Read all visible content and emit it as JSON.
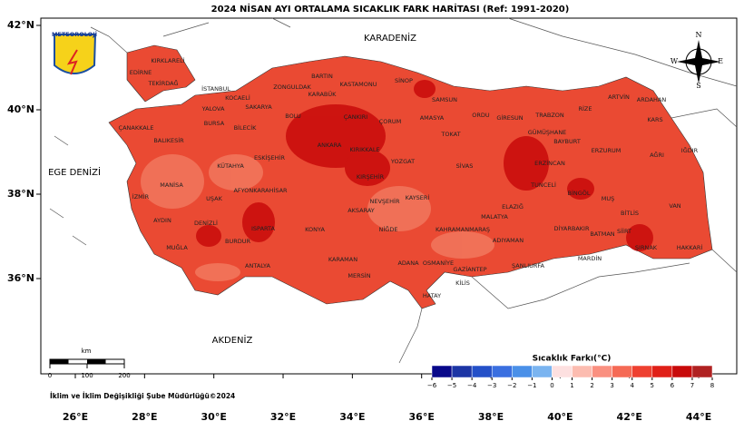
{
  "title": "2024 NİSAN AYI ORTALAMA SICAKLIK FARK HARİTASI (Ref: 1991-2020)",
  "logo": "METEOROLOJİ",
  "latitude_ticks": [
    {
      "value": 42,
      "label": "42°N"
    },
    {
      "value": 40,
      "label": "40°N"
    },
    {
      "value": 38,
      "label": "38°N"
    },
    {
      "value": 36,
      "label": "36°N"
    }
  ],
  "longitude_ticks": [
    {
      "value": 26,
      "label": "26°E"
    },
    {
      "value": 28,
      "label": "28°E"
    },
    {
      "value": 30,
      "label": "30°E"
    },
    {
      "value": 32,
      "label": "32°E"
    },
    {
      "value": 34,
      "label": "34°E"
    },
    {
      "value": 36,
      "label": "36°E"
    },
    {
      "value": 38,
      "label": "38°E"
    },
    {
      "value": 40,
      "label": "40°E"
    },
    {
      "value": 42,
      "label": "42°E"
    },
    {
      "value": 44,
      "label": "44°E"
    }
  ],
  "seas": [
    "KARADENİZ",
    "EGE DENİZİ",
    "AKDENİZ"
  ],
  "compass": {
    "north": "N",
    "east": "E",
    "south": "S",
    "west": "W"
  },
  "scale_bar": {
    "unit": "km",
    "ticks": [
      0,
      100,
      200
    ]
  },
  "legend": {
    "title": "Sıcaklık Farkı(°C)",
    "ticks": [
      {
        "value": -6,
        "label": "−6"
      },
      {
        "value": -5,
        "label": "−5"
      },
      {
        "value": -4,
        "label": "−4"
      },
      {
        "value": -3,
        "label": "−3"
      },
      {
        "value": -2,
        "label": "−2"
      },
      {
        "value": -1,
        "label": "−1"
      },
      0,
      1,
      2,
      3,
      4,
      5,
      6,
      7,
      8
    ],
    "colors": [
      "#08088a",
      "#1c35a5",
      "#2450c8",
      "#3a6fe0",
      "#4a90e8",
      "#7ab4f0",
      "#fde0e0",
      "#fcbcb0",
      "#fa9080",
      "#f56a55",
      "#ee4030",
      "#e02018",
      "#c80a0a",
      "#b02222"
    ]
  },
  "credit": "İklim ve İklim Değişikliği Şube Müdürlüğü©2024",
  "provinces": [
    "KIRKLARELİ",
    "EDİRNE",
    "TEKİRDAĞ",
    "İSTANBUL",
    "KOCAELİ",
    "SAKARYA",
    "ZONGULDAK",
    "BARTIN",
    "KARABÜK",
    "KASTAMONU",
    "SİNOP",
    "SAMSUN",
    "ORDU",
    "GİRESUN",
    "TRABZON",
    "RİZE",
    "ARTVİN",
    "ARDAHAN",
    "KARS",
    "YALOVA",
    "BURSA",
    "BİLECİK",
    "BOLU",
    "ÇANKIRI",
    "ÇORUM",
    "AMASYA",
    "TOKAT",
    "ÇANAKKALE",
    "BALIKESİR",
    "ESKİŞEHİR",
    "ANKARA",
    "KIRIKKALE",
    "YOZGAT",
    "SİVAS",
    "ERZİNCAN",
    "GÜMÜŞHANE",
    "BAYBURT",
    "ERZURUM",
    "AĞRI",
    "IĞDIR",
    "KÜTAHYA",
    "KIRŞEHİR",
    "TUNCELİ",
    "BİNGÖL",
    "MUŞ",
    "VAN",
    "BİTLİS",
    "MANİSA",
    "UŞAK",
    "AFYONKARAHİSAR",
    "NEVŞEHİR",
    "KAYSERİ",
    "MALATYA",
    "ELAZIĞ",
    "İZMİR",
    "AYDIN",
    "DENİZLİ",
    "KONYA",
    "AKSARAY",
    "NİĞDE",
    "KAHRAMANMARAŞ",
    "ADIYAMAN",
    "DİYARBAKIR",
    "BATMAN",
    "SİİRT",
    "ŞIRNAK",
    "HAKKARİ",
    "MUĞLA",
    "BURDUR",
    "ISPARTA",
    "ANTALYA",
    "KARAMAN",
    "MERSİN",
    "ADANA",
    "OSMANİYE",
    "GAZİANTEP",
    "ŞANLIURFA",
    "MARDİN",
    "KİLİS",
    "HATAY"
  ]
}
